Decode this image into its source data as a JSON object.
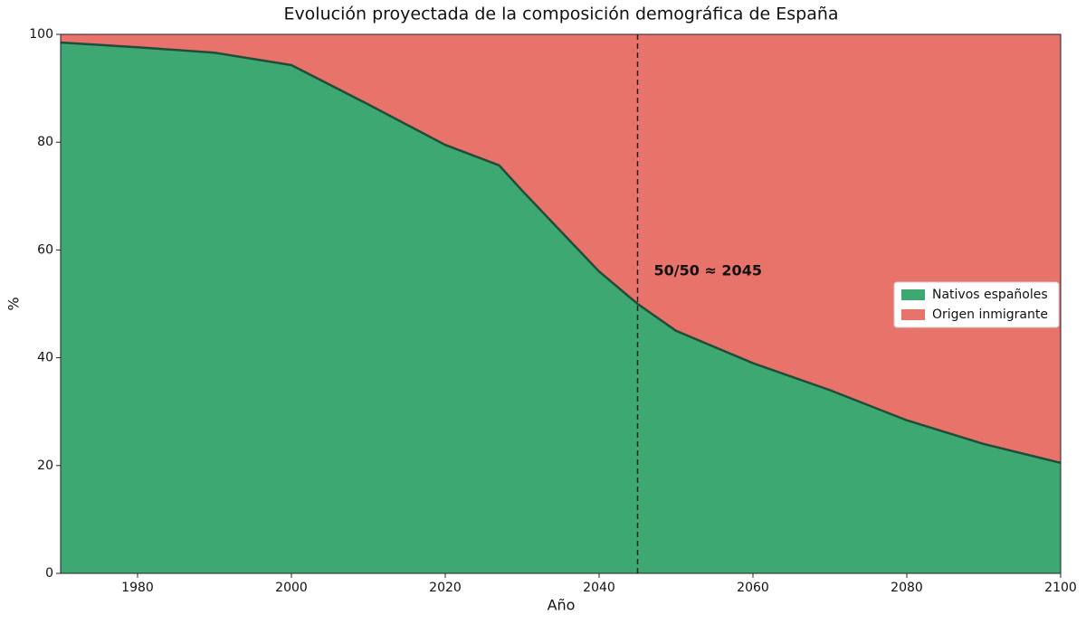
{
  "chart_data": {
    "type": "stacked_area",
    "title": "Evolución proyectada de la composición demográfica de España",
    "x_label": "Año",
    "y_label": "%",
    "x": [
      1970,
      1980,
      1990,
      2000,
      2010,
      2020,
      2027,
      2030,
      2040,
      2045,
      2050,
      2060,
      2070,
      2080,
      2090,
      2100
    ],
    "series": [
      {
        "name": "Nativos españoles",
        "color": "#3da872",
        "values": [
          98.5,
          97.6,
          96.6,
          94.3,
          87,
          79.5,
          75.7,
          71,
          56,
          50,
          45,
          39,
          34,
          28.4,
          24,
          20.5
        ]
      },
      {
        "name": "Origen inmigrante",
        "color": "#e8736a",
        "values": [
          1.5,
          2.4,
          3.4,
          5.7,
          13,
          20.5,
          24.3,
          29,
          44,
          50,
          55,
          61,
          66,
          71.6,
          76,
          79.5
        ]
      }
    ],
    "xlim": [
      1970,
      2100
    ],
    "xticks": [
      1980,
      2000,
      2020,
      2040,
      2060,
      2080,
      2100
    ],
    "ylim": [
      0,
      100
    ],
    "yticks": [
      0,
      20,
      40,
      60,
      80,
      100
    ],
    "vline_x": 2045,
    "annotation": "50/50 ≈ 2045",
    "legend": "right"
  }
}
